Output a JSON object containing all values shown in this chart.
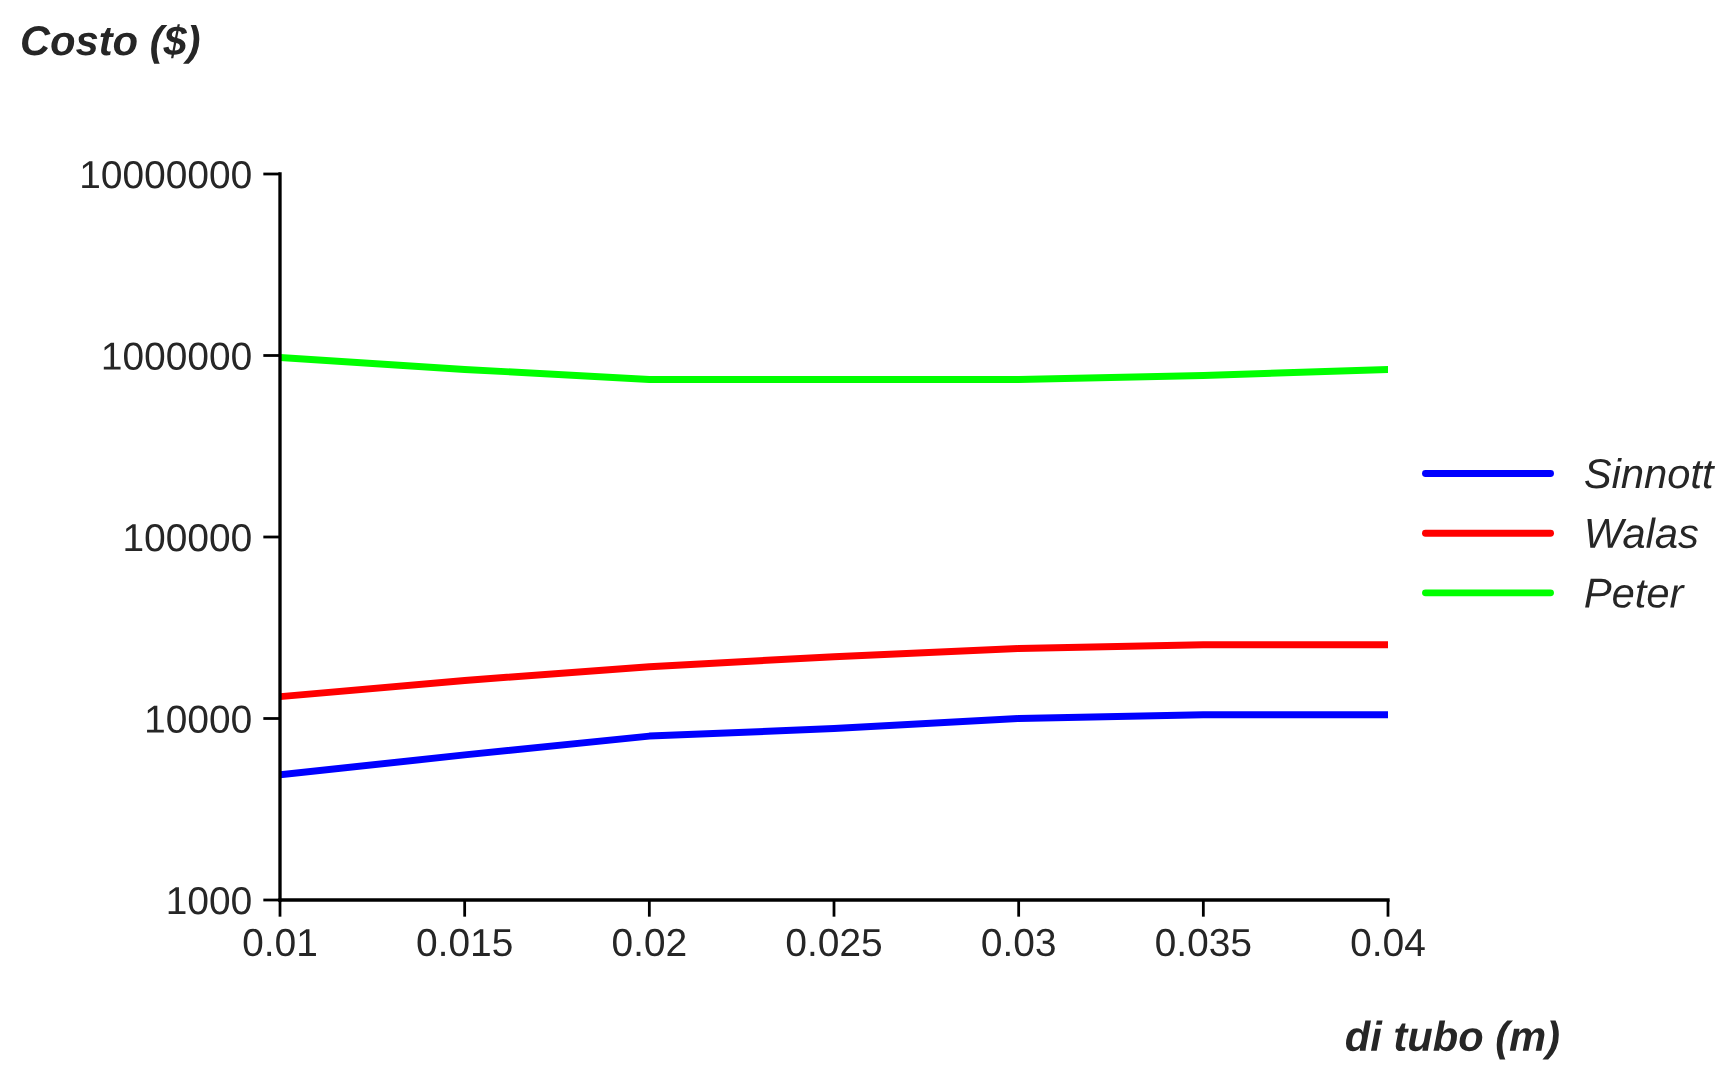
{
  "chart_data": {
    "type": "line",
    "ylabel": "Costo ($)",
    "xlabel": "di tubo (m)",
    "x": [
      0.01,
      0.015,
      0.02,
      0.025,
      0.03,
      0.035,
      0.04
    ],
    "series": [
      {
        "name": "Sinnott",
        "color": "#0000ff",
        "values": [
          4900,
          6300,
          8000,
          8800,
          10000,
          10500,
          10500
        ]
      },
      {
        "name": "Walas",
        "color": "#ff0000",
        "values": [
          13200,
          16200,
          19300,
          21900,
          24300,
          25500,
          25500
        ]
      },
      {
        "name": "Peter",
        "color": "#00ff00",
        "values": [
          975000,
          838000,
          738000,
          738000,
          738000,
          776000,
          838000
        ]
      }
    ],
    "log": "y",
    "xlim": [
      0.01,
      0.04
    ],
    "ylim": [
      1000,
      10000000
    ],
    "xticks": [
      0.01,
      0.015,
      0.02,
      0.025,
      0.03,
      0.035,
      0.04
    ],
    "yticks": [
      1000,
      10000,
      100000,
      1000000,
      10000000
    ],
    "grid": false,
    "legend": "right",
    "marker": "none",
    "line_style": "solid"
  }
}
